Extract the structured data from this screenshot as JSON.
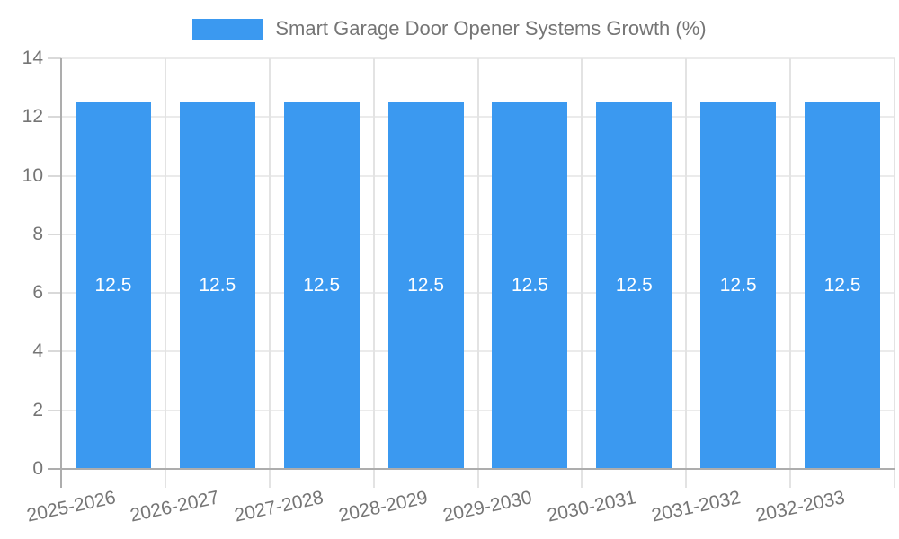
{
  "chart_data": {
    "type": "bar",
    "title": "Smart Garage Door Opener Systems Growth (%)",
    "categories": [
      "2025-2026",
      "2026-2027",
      "2027-2028",
      "2028-2029",
      "2029-2030",
      "2030-2031",
      "2031-2032",
      "2032-2033"
    ],
    "values": [
      12.5,
      12.5,
      12.5,
      12.5,
      12.5,
      12.5,
      12.5,
      12.5
    ],
    "value_labels": [
      "12.5",
      "12.5",
      "12.5",
      "12.5",
      "12.5",
      "12.5",
      "12.5",
      "12.5"
    ],
    "yticks": [
      0,
      2,
      4,
      6,
      8,
      10,
      12,
      14
    ],
    "ylim": [
      0,
      14
    ],
    "xlabel": "",
    "ylabel": "",
    "grid": true,
    "legend_position": "top",
    "colors": {
      "bar": "#3B99F0",
      "bar_value_text": "#ffffff",
      "axis_text": "#757575",
      "legend_text": "#757575",
      "axis_line": "#adadad",
      "gridline_horizontal": "#ebebeb",
      "gridline_vertical": "#e3e3e3",
      "ytick_dash": "#d9d9d9",
      "background": "#ffffff"
    }
  }
}
